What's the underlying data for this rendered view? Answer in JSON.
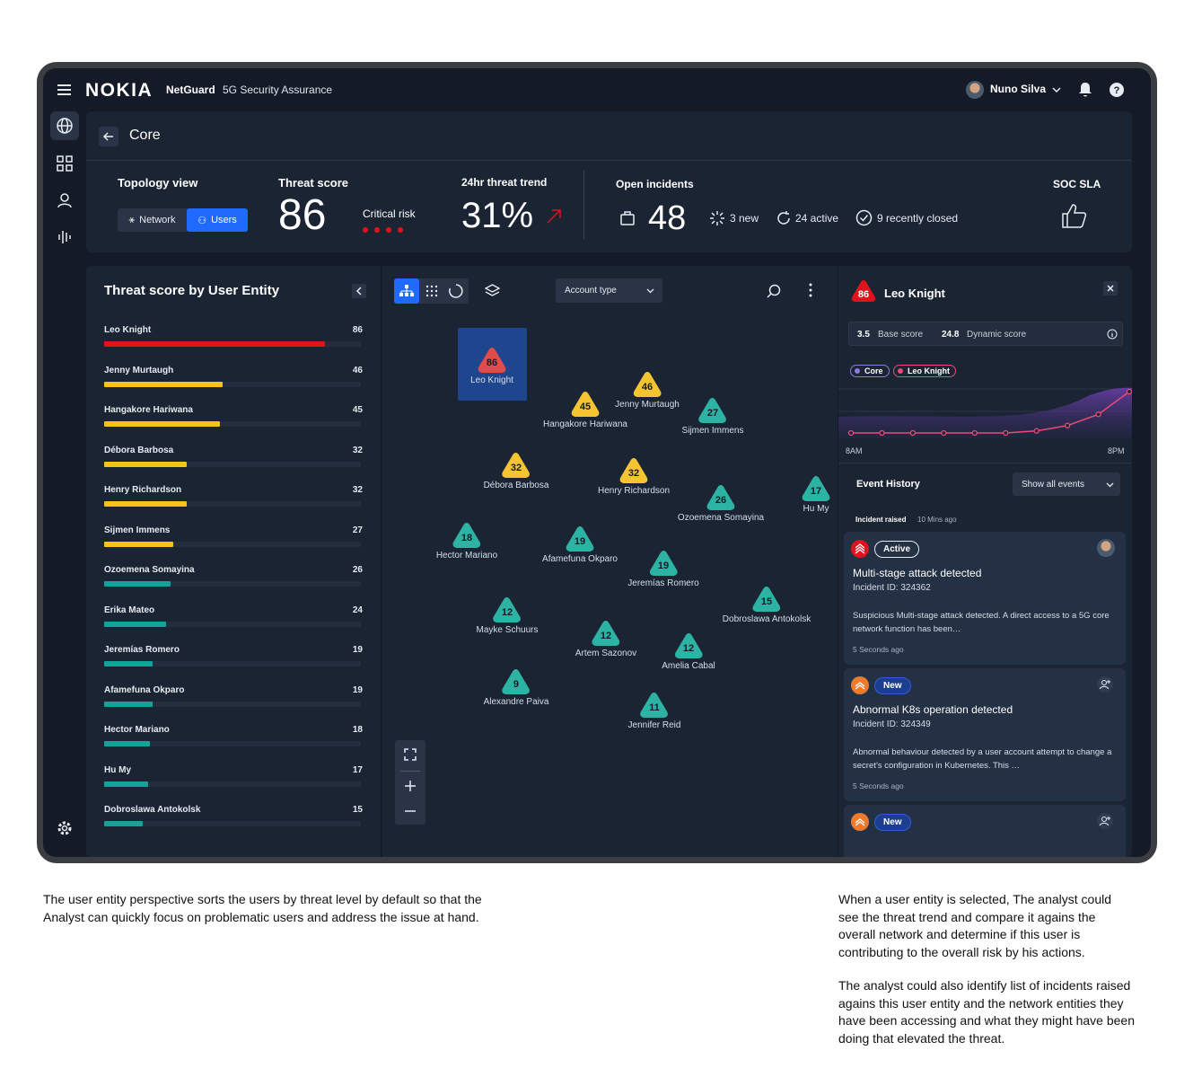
{
  "header": {
    "logo": "NOKIA",
    "product": "NetGuard",
    "subtitle": "5G Security Assurance",
    "user": "Nuno Silva"
  },
  "breadcrumb": {
    "title": "Core"
  },
  "summary": {
    "topology_label": "Topology view",
    "toggle_network": "Network",
    "toggle_users": "Users",
    "threat_score_label": "Threat score",
    "threat_score": "86",
    "risk_label": "Critical risk",
    "trend_label": "24hr threat trend",
    "trend_value": "31%",
    "incidents_label": "Open incidents",
    "incidents_value": "48",
    "new": "3 new",
    "active": "24 active",
    "closed": "9 recently closed",
    "sla_label": "SOC SLA"
  },
  "entity_list": {
    "title": "Threat score by User Entity",
    "items": [
      {
        "name": "Leo Knight",
        "score": 86,
        "color": "#e0121c"
      },
      {
        "name": "Jenny Murtaugh",
        "score": 46,
        "color": "#f7c319"
      },
      {
        "name": "Hangakore Hariwana",
        "score": 45,
        "color": "#f7c319"
      },
      {
        "name": "Débora Barbosa",
        "score": 32,
        "color": "#f7c319"
      },
      {
        "name": "Henry Richardson",
        "score": 32,
        "color": "#f7c319"
      },
      {
        "name": "Sijmen Immens",
        "score": 27,
        "color": "#f7c319"
      },
      {
        "name": "Ozoemena Somayina",
        "score": 26,
        "color": "#14a39a"
      },
      {
        "name": "Erika Mateo",
        "score": 24,
        "color": "#14a39a"
      },
      {
        "name": "Jeremías Romero",
        "score": 19,
        "color": "#14a39a"
      },
      {
        "name": "Afamefuna Okparo",
        "score": 19,
        "color": "#14a39a"
      },
      {
        "name": "Hector Mariano",
        "score": 18,
        "color": "#14a39a"
      },
      {
        "name": "Hu My",
        "score": 17,
        "color": "#14a39a"
      },
      {
        "name": "Dobroslawa Antokolsk",
        "score": 15,
        "color": "#14a39a"
      }
    ]
  },
  "graph": {
    "dropdown": "Account type",
    "nodes": [
      {
        "name": "Leo Knight",
        "score": "86",
        "color": "#e34b4b"
      },
      {
        "name": "Jenny Murtaugh",
        "score": "46",
        "color": "#f5c431"
      },
      {
        "name": "Hangakore Hariwana",
        "score": "45",
        "color": "#f5c431"
      },
      {
        "name": "Sijmen Immens",
        "score": "27",
        "color": "#2db3a3"
      },
      {
        "name": "Débora Barbosa",
        "score": "32",
        "color": "#f5c431"
      },
      {
        "name": "Henry Richardson",
        "score": "32",
        "color": "#f5c431"
      },
      {
        "name": "Ozoemena Somayina",
        "score": "26",
        "color": "#2db3a3"
      },
      {
        "name": "Hu My",
        "score": "17",
        "color": "#2db3a3"
      },
      {
        "name": "Hector Mariano",
        "score": "18",
        "color": "#2db3a3"
      },
      {
        "name": "Afamefuna Okparo",
        "score": "19",
        "color": "#2db3a3"
      },
      {
        "name": "Jeremías Romero",
        "score": "19",
        "color": "#2db3a3"
      },
      {
        "name": "Dobroslawa Antokolsk",
        "score": "15",
        "color": "#2db3a3"
      },
      {
        "name": "Mayke Schuurs",
        "score": "12",
        "color": "#2db3a3"
      },
      {
        "name": "Artem Sazonov",
        "score": "12",
        "color": "#2db3a3"
      },
      {
        "name": "Amelia Cabal",
        "score": "12",
        "color": "#2db3a3"
      },
      {
        "name": "Alexandre Paiva",
        "score": "9",
        "color": "#2db3a3"
      },
      {
        "name": "Jennifer Reid",
        "score": "11",
        "color": "#2db3a3"
      }
    ]
  },
  "detail": {
    "score": "86",
    "name": "Leo Knight",
    "base_score": "3.5",
    "base_label": "Base score",
    "dynamic_score": "24.8",
    "dynamic_label": "Dynamic score",
    "tag_core": "Core",
    "tag_user": "Leo Knight",
    "time_start": "8AM",
    "time_end": "8PM",
    "trend_points": [
      0,
      0,
      0,
      0,
      0,
      0,
      0.05,
      0.18,
      0.45,
      1
    ],
    "event_title": "Event History",
    "event_filter": "Show all events",
    "raised_label": "Incident raised",
    "raised_time": "10 Mins ago",
    "cards": [
      {
        "status": "Active",
        "title": "Multi-stage attack detected",
        "incident": "Incident ID: 324362",
        "desc": "Suspicious Multi-stage attack detected. A direct access to a 5G core network function has been…",
        "time": "5 Seconds ago"
      },
      {
        "status": "New",
        "title": "Abnormal K8s operation detected",
        "incident": "Incident ID: 324349",
        "desc": "Abnormal behaviour detected by a user account attempt to change a secret’s configuration in Kubernetes. This …",
        "time": "5 Seconds ago"
      },
      {
        "status": "New"
      }
    ]
  },
  "annotations": {
    "left": "The user entity perspective sorts the users by threat level by default so that the Analyst can quickly focus on problematic users and address the issue at hand.",
    "right1": "When a user entity is selected, The analyst could see the threat trend and compare it agains the overall network and determine if this user is contributing to the overall risk by his actions.",
    "right2": "The analyst could also identify list of incidents raised agains this user entity and the network entities they have been accessing and what they might have been doing that elevated the threat."
  }
}
